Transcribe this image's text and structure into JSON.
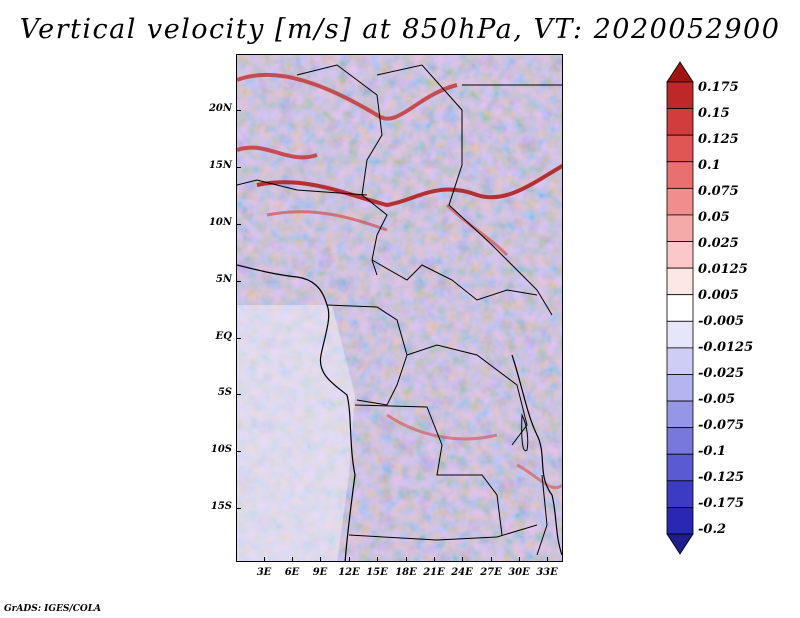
{
  "title": "Vertical velocity [m/s] at 850hPa, VT: 2020052900",
  "footer": "GrADS: IGES/COLA",
  "axes": {
    "lat_labels": [
      "20N",
      "15N",
      "10N",
      "5N",
      "EQ",
      "5S",
      "10S",
      "15S"
    ],
    "lon_labels": [
      "3E",
      "6E",
      "9E",
      "12E",
      "15E",
      "18E",
      "21E",
      "24E",
      "27E",
      "30E",
      "33E"
    ]
  },
  "colorbar": {
    "levels": [
      "0.175",
      "0.15",
      "0.125",
      "0.1",
      "0.075",
      "0.05",
      "0.025",
      "0.0125",
      "0.005",
      "-0.005",
      "-0.0125",
      "-0.025",
      "-0.05",
      "-0.075",
      "-0.1",
      "-0.125",
      "-0.175",
      "-0.2"
    ],
    "colors": [
      "#a01414",
      "#be2828",
      "#d23c3c",
      "#e05555",
      "#e87070",
      "#f08e8e",
      "#f5aaaa",
      "#fac8c8",
      "#fde6e6",
      "#ffffff",
      "#e6e6fa",
      "#cdcdf5",
      "#b4b4f0",
      "#9696e6",
      "#7878dc",
      "#5a5ad2",
      "#3c3cc3",
      "#2828b4",
      "#1e1e8c"
    ]
  }
}
